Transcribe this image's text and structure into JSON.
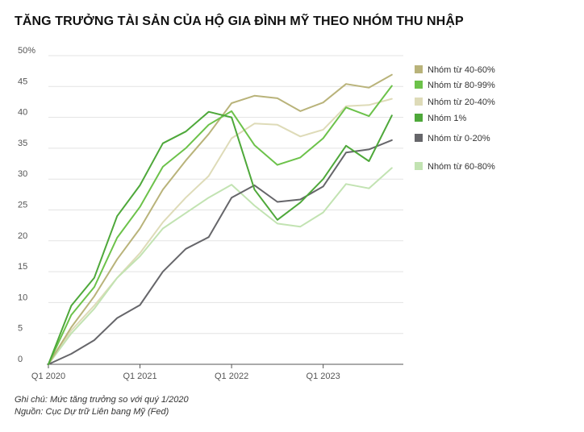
{
  "title": "TĂNG TRƯỞNG TÀI SẢN CỦA HỘ GIA ĐÌNH MỸ THEO NHÓM THU NHẬP",
  "note": "Ghi chú: Mức tăng trưởng so với quý 1/2020",
  "source": "Nguồn: Cục Dự trữ Liên bang Mỹ (Fed)",
  "chart_data": {
    "type": "line",
    "title": "TĂNG TRƯỞNG TÀI SẢN CỦA HỘ GIA ĐÌNH MỸ THEO NHÓM THU NHẬP",
    "xlabel": "",
    "ylabel": "",
    "ylim": [
      0,
      50
    ],
    "y_ticks": [
      0,
      5,
      10,
      15,
      20,
      25,
      30,
      35,
      40,
      45,
      50
    ],
    "y_tick_labels": [
      "0",
      "5",
      "10",
      "15",
      "20",
      "25",
      "30",
      "35",
      "40",
      "45",
      "50%"
    ],
    "x_ticks": [
      0,
      4,
      8,
      12
    ],
    "x_tick_labels": [
      "Q1 2020",
      "Q1 2021",
      "Q1 2022",
      "Q1 2023"
    ],
    "x": [
      0,
      1,
      2,
      3,
      4,
      5,
      6,
      7,
      8,
      9,
      10,
      11,
      12,
      13,
      14,
      15
    ],
    "grid": "horizontal",
    "legend_position": "right",
    "series": [
      {
        "name": "Nhóm từ 40-60%",
        "color": "#b9b37a",
        "values": [
          0,
          6,
          11,
          17,
          22,
          28.3,
          33,
          37.3,
          42.3,
          43.5,
          43.1,
          41,
          42.4,
          45.4,
          44.8,
          46.9
        ]
      },
      {
        "name": "Nhóm từ 80-99%",
        "color": "#6cc24a",
        "values": [
          0,
          8,
          12.5,
          20.5,
          25.5,
          32,
          35,
          38.8,
          41,
          35.5,
          32.3,
          33.5,
          36.6,
          41.6,
          40.2,
          45.1
        ]
      },
      {
        "name": "Nhóm từ  20-40%",
        "color": "#dedbb8",
        "values": [
          0,
          5.5,
          9.5,
          14,
          18,
          23,
          27,
          30.5,
          36.6,
          39,
          38.8,
          36.9,
          38,
          41.8,
          42,
          43
        ]
      },
      {
        "name": "Nhóm 1%",
        "color": "#4ea83a",
        "values": [
          0,
          9.5,
          14,
          24,
          29,
          35.8,
          37.7,
          40.9,
          40,
          28.3,
          23.4,
          26.2,
          30,
          35.4,
          32.9,
          40.3
        ]
      },
      {
        "name": "Nhóm từ 0-20%",
        "color": "#66666a",
        "values": [
          0,
          1.7,
          3.9,
          7.5,
          9.6,
          15,
          18.7,
          20.6,
          27,
          29,
          26.3,
          26.7,
          28.8,
          34.3,
          34.8,
          36.3
        ]
      },
      {
        "name": "Nhóm từ 60-80%",
        "color": "#c2e3b2",
        "values": [
          0,
          5,
          9,
          14,
          17.5,
          22,
          24.5,
          27,
          29.1,
          25.7,
          22.8,
          22.3,
          24.6,
          29.2,
          28.5,
          31.8
        ]
      }
    ]
  }
}
